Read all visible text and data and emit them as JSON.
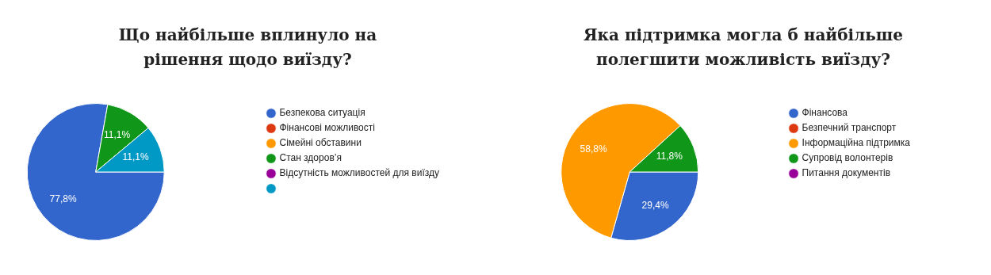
{
  "chart_data": [
    {
      "type": "pie",
      "title": "Що найбільше вплинуло на рішення щодо виїзду?",
      "categories": [
        "Безпекова ситуація",
        "Фінансові можливості",
        "Сімейні обставини",
        "Стан здоров’я",
        "Відсутність можливостей для виїзду",
        null
      ],
      "values": [
        77.8,
        0,
        0,
        11.1,
        0,
        11.1
      ],
      "colors": [
        "#3366cc",
        "#dc3912",
        "#ff9900",
        "#109618",
        "#990099",
        "#0099c6"
      ],
      "value_labels": [
        "77,8%",
        null,
        null,
        "11,1%",
        null,
        "11,1%"
      ],
      "legend": "right"
    },
    {
      "type": "pie",
      "title": "Яка підтримка могла б найбільше полегшити можливість виїзду?",
      "categories": [
        "Фінансова",
        "Безпечний транспорт",
        "Інформаційна підтримка",
        "Супровід волонтерів",
        "Питання документів"
      ],
      "values": [
        29.4,
        0,
        58.8,
        11.8,
        0
      ],
      "colors": [
        "#3366cc",
        "#dc3912",
        "#ff9900",
        "#109618",
        "#990099"
      ],
      "value_labels": [
        "29,4%",
        null,
        "58,8%",
        "11,8%",
        null
      ],
      "legend": "right"
    }
  ]
}
